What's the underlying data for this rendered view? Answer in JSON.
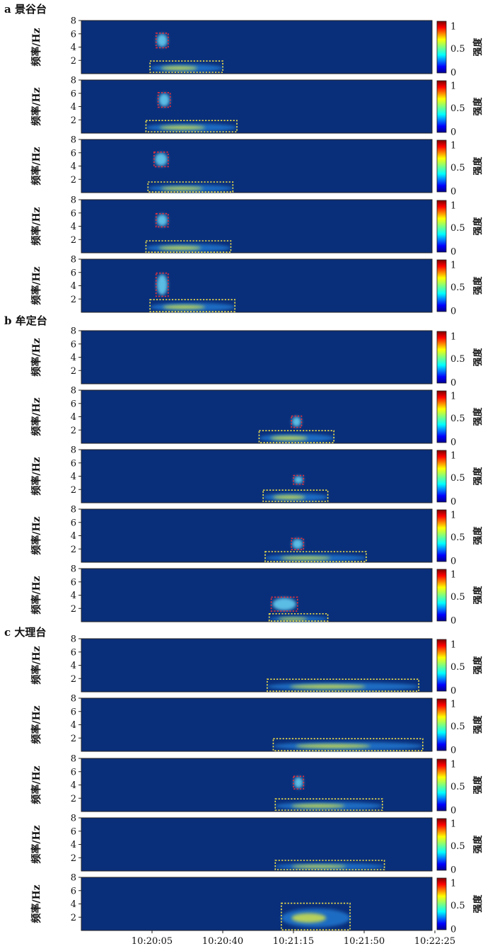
{
  "figure": {
    "sections": [
      {
        "label": "a 景谷台",
        "panel_count": 5
      },
      {
        "label": "b 牟定台",
        "panel_count": 5
      },
      {
        "label": "c 大理台",
        "panel_count": 5
      }
    ],
    "ylabel": "频率/Hz",
    "colorbar_label": "强度",
    "y_ticks": [
      "2",
      "4",
      "6",
      "8"
    ],
    "colorbar_ticks": [
      "0",
      "0.5",
      "1"
    ],
    "x_ticks": [
      "10:20:05",
      "10:20:40",
      "10:21:15",
      "10:21:50",
      "10:22:25"
    ]
  },
  "chart_data": {
    "type": "heatmap",
    "colormap": "jet",
    "background_color": "#0a2f7a",
    "ylim": [
      0,
      8
    ],
    "colorbar_range": [
      0,
      1
    ],
    "xlabel": "",
    "ylabel": "频率/Hz",
    "x_ticks": [
      "10:20:05",
      "10:20:40",
      "10:21:15",
      "10:21:50",
      "10:22:25"
    ],
    "panels": [
      {
        "section": "a 景谷台",
        "boxes": [
          {
            "color": "red",
            "t": [
              "10:20:07",
              "10:20:13"
            ],
            "f": [
              3.9,
              6.1
            ]
          },
          {
            "color": "yellow",
            "t": [
              "10:20:04",
              "10:20:40"
            ],
            "f": [
              0.2,
              1.9
            ]
          }
        ]
      },
      {
        "section": "a 景谷台",
        "boxes": [
          {
            "color": "red",
            "t": [
              "10:20:08",
              "10:20:14"
            ],
            "f": [
              3.9,
              6.1
            ]
          },
          {
            "color": "yellow",
            "t": [
              "10:20:02",
              "10:20:47"
            ],
            "f": [
              0.2,
              1.9
            ]
          }
        ]
      },
      {
        "section": "a 景谷台",
        "boxes": [
          {
            "color": "red",
            "t": [
              "10:20:06",
              "10:20:13"
            ],
            "f": [
              3.9,
              6.1
            ]
          },
          {
            "color": "yellow",
            "t": [
              "10:20:03",
              "10:20:45"
            ],
            "f": [
              0.1,
              1.6
            ]
          }
        ]
      },
      {
        "section": "a 景谷台",
        "boxes": [
          {
            "color": "red",
            "t": [
              "10:20:07",
              "10:20:13"
            ],
            "f": [
              3.9,
              5.9
            ]
          },
          {
            "color": "yellow",
            "t": [
              "10:20:02",
              "10:20:44"
            ],
            "f": [
              0.1,
              1.8
            ]
          }
        ]
      },
      {
        "section": "a 景谷台",
        "boxes": [
          {
            "color": "red",
            "t": [
              "10:20:07",
              "10:20:13"
            ],
            "f": [
              2.4,
              5.9
            ]
          },
          {
            "color": "yellow",
            "t": [
              "10:20:04",
              "10:20:46"
            ],
            "f": [
              0.1,
              1.9
            ]
          }
        ]
      },
      {
        "section": "b 牟定台",
        "boxes": []
      },
      {
        "section": "b 牟定台",
        "boxes": [
          {
            "color": "red",
            "t": [
              "10:21:14",
              "10:21:19"
            ],
            "f": [
              2.4,
              4.1
            ]
          },
          {
            "color": "yellow",
            "t": [
              "10:20:58",
              "10:21:35"
            ],
            "f": [
              0.1,
              1.9
            ]
          }
        ]
      },
      {
        "section": "b 牟定台",
        "boxes": [
          {
            "color": "red",
            "t": [
              "10:21:15",
              "10:21:20"
            ],
            "f": [
              2.8,
              4.1
            ]
          },
          {
            "color": "yellow",
            "t": [
              "10:21:00",
              "10:21:32"
            ],
            "f": [
              0.2,
              1.9
            ]
          }
        ]
      },
      {
        "section": "b 牟定台",
        "boxes": [
          {
            "color": "red",
            "t": [
              "10:21:14",
              "10:21:20"
            ],
            "f": [
              1.9,
              3.6
            ]
          },
          {
            "color": "yellow",
            "t": [
              "10:21:01",
              "10:21:51"
            ],
            "f": [
              0.1,
              1.6
            ]
          }
        ]
      },
      {
        "section": "b 牟定台",
        "boxes": [
          {
            "color": "red",
            "t": [
              "10:21:04",
              "10:21:17"
            ],
            "f": [
              1.6,
              3.7
            ]
          },
          {
            "color": "yellow",
            "t": [
              "10:21:03",
              "10:21:32"
            ],
            "f": [
              0.1,
              1.2
            ]
          }
        ]
      },
      {
        "section": "c 大理台",
        "boxes": [
          {
            "color": "yellow",
            "t": [
              "10:21:02",
              "10:22:17"
            ],
            "f": [
              0.1,
              1.9
            ]
          }
        ]
      },
      {
        "section": "c 大理台",
        "boxes": [
          {
            "color": "yellow",
            "t": [
              "10:21:05",
              "10:22:19"
            ],
            "f": [
              0.1,
              1.9
            ]
          }
        ]
      },
      {
        "section": "c 大理台",
        "boxes": [
          {
            "color": "red",
            "t": [
              "10:21:15",
              "10:21:20"
            ],
            "f": [
              3.4,
              5.3
            ]
          },
          {
            "color": "yellow",
            "t": [
              "10:21:06",
              "10:21:59"
            ],
            "f": [
              0.2,
              1.9
            ]
          }
        ]
      },
      {
        "section": "c 大理台",
        "boxes": [
          {
            "color": "yellow",
            "t": [
              "10:21:06",
              "10:22:00"
            ],
            "f": [
              0.2,
              1.6
            ]
          }
        ]
      },
      {
        "section": "c 大理台",
        "boxes": [
          {
            "color": "yellow",
            "t": [
              "10:21:09",
              "10:21:43"
            ],
            "f": [
              0.1,
              4.1
            ]
          }
        ]
      }
    ]
  }
}
